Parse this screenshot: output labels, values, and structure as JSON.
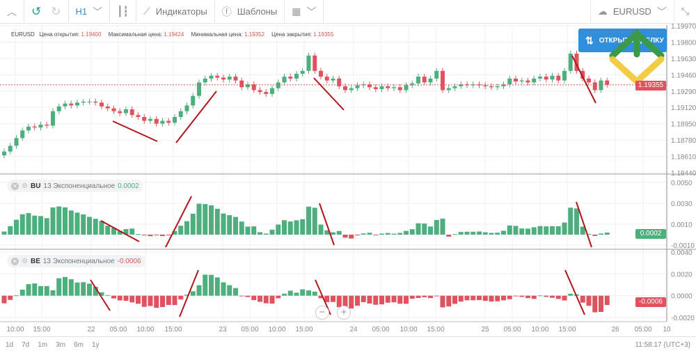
{
  "toolbar": {
    "timeframe": "H1",
    "indicators": "Индикаторы",
    "templates": "Шаблоны",
    "symbol": "EURUSD"
  },
  "info": {
    "symbol": "EURUSD",
    "open_label": "Цена открытия:",
    "open": "1.19400",
    "high_label": "Максимальная цена:",
    "high": "1.19424",
    "low_label": "Минимальная цена:",
    "low": "1.19352",
    "close_label": "Цена закрытия:",
    "close": "1.19355"
  },
  "open_trade": "ОТКРЫТЬ СДЕЛКУ",
  "current_price": "1.19355",
  "price_ticks": [
    "1.19970",
    "1.19800",
    "1.19630",
    "1.19460",
    "1.19290",
    "1.19120",
    "1.18950",
    "1.18780",
    "1.18610",
    "1.18440"
  ],
  "bu": {
    "name": "BU",
    "desc": "13 Экспоненциальное",
    "value": "0.0002",
    "ticks": [
      "0.0050",
      "0.0030",
      "0.0010",
      "-0.0010"
    ]
  },
  "be": {
    "name": "BE",
    "desc": "13 Экспоненциальное",
    "value": "-0.0006",
    "ticks": [
      "0.0040",
      "0.0020",
      "0.0000",
      "-0.0020"
    ]
  },
  "time_ticks": [
    "10:00",
    "15:00",
    "22",
    "05:00",
    "10:00",
    "15:00",
    "23",
    "05:00",
    "10:00",
    "15:00",
    "24",
    "05:00",
    "10:00",
    "15:00",
    "25",
    "05:00",
    "10:00",
    "15:00",
    "26",
    "05:00",
    "10"
  ],
  "ranges": [
    "1d",
    "7d",
    "1m",
    "3m",
    "6m",
    "1y"
  ],
  "clock": "11:58:17 (UTC+3)",
  "colors": {
    "up": "#4caf7d",
    "down": "#e0525e",
    "annotation": "#b0141c",
    "accent": "#2f8fdd"
  },
  "chart_data": {
    "type": "candlestick",
    "symbol": "EURUSD",
    "timeframe": "H1",
    "ylim": [
      1.1844,
      1.1997
    ],
    "closes": [
      1.1866,
      1.1872,
      1.188,
      1.1888,
      1.1892,
      1.1891,
      1.1894,
      1.1893,
      1.1908,
      1.1913,
      1.1916,
      1.1914,
      1.1917,
      1.1918,
      1.1918,
      1.1917,
      1.1913,
      1.1911,
      1.1908,
      1.1906,
      1.191,
      1.1904,
      1.1902,
      1.1898,
      1.19,
      1.1895,
      1.1898,
      1.1896,
      1.1902,
      1.1908,
      1.1914,
      1.1924,
      1.1938,
      1.1942,
      1.1945,
      1.1943,
      1.1941,
      1.1944,
      1.194,
      1.1933,
      1.1936,
      1.193,
      1.1928,
      1.1926,
      1.1932,
      1.1938,
      1.1944,
      1.1942,
      1.1947,
      1.195,
      1.1966,
      1.195,
      1.1944,
      1.194,
      1.1942,
      1.1934,
      1.193,
      1.1932,
      1.1935,
      1.1936,
      1.1933,
      1.1931,
      1.1934,
      1.1932,
      1.1933,
      1.193,
      1.1935,
      1.1937,
      1.1944,
      1.1938,
      1.1942,
      1.195,
      1.193,
      1.1932,
      1.1934,
      1.1936,
      1.1935,
      1.1936,
      1.1935,
      1.1934,
      1.1933,
      1.1934,
      1.1936,
      1.1942,
      1.1939,
      1.194,
      1.1938,
      1.1942,
      1.1944,
      1.1941,
      1.1945,
      1.194,
      1.195,
      1.1968,
      1.195,
      1.1942,
      1.1938,
      1.193,
      1.194,
      1.19355
    ]
  }
}
